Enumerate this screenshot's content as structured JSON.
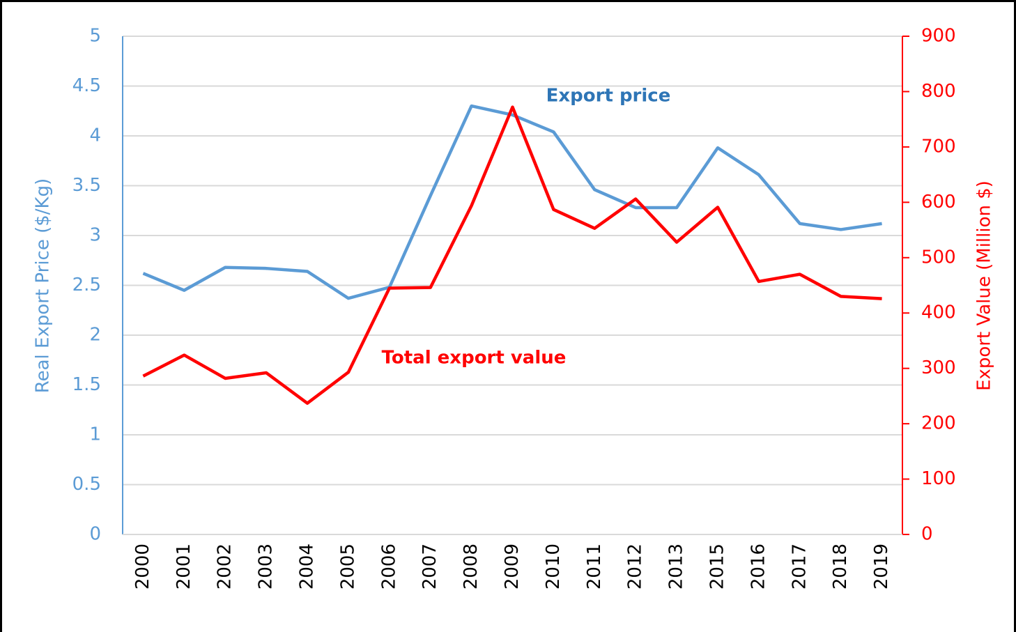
{
  "chart_data": {
    "type": "line",
    "categories": [
      "2000",
      "2001",
      "2002",
      "2003",
      "2004",
      "2005",
      "2006",
      "2007",
      "2008",
      "2009",
      "2010",
      "2011",
      "2012",
      "2013",
      "2015",
      "2016",
      "2017",
      "2018",
      "2019"
    ],
    "series": [
      {
        "name": "Export price",
        "color": "#5b9bd5",
        "axis": "y",
        "values": [
          2.62,
          2.45,
          2.68,
          2.67,
          2.64,
          2.37,
          2.48,
          3.4,
          4.3,
          4.21,
          4.04,
          3.46,
          3.28,
          3.28,
          3.88,
          3.61,
          3.12,
          3.06,
          3.12
        ]
      },
      {
        "name": "Total export value",
        "color": "#ff0000",
        "axis": "y2",
        "values": [
          286,
          324,
          282,
          292,
          237,
          293,
          445,
          446,
          594,
          772,
          587,
          553,
          606,
          528,
          591,
          457,
          470,
          430,
          426
        ]
      }
    ],
    "ylabel": "Real Export Price ($/Kg)",
    "y2label": "Export Value (Million $)",
    "ylim": [
      0,
      5
    ],
    "yticks": [
      0,
      0.5,
      1,
      1.5,
      2,
      2.5,
      3,
      3.5,
      4,
      4.5,
      5
    ],
    "y2lim": [
      0,
      900
    ],
    "y2ticks": [
      0,
      100,
      200,
      300,
      400,
      500,
      600,
      700,
      800,
      900
    ],
    "grid": true
  }
}
